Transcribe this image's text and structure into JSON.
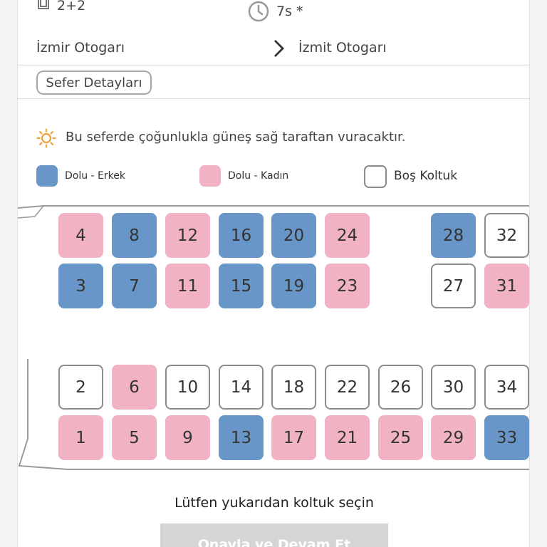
{
  "trip": {
    "layout": "2+2",
    "duration": "7s *",
    "from": "İzmir Otogarı",
    "to": "İzmit Otogarı",
    "details_button": "Sefer Detayları"
  },
  "sun_notice": "Bu seferde çoğunlukla güneş sağ taraftan vuracaktır.",
  "legend": {
    "male": "Dolu - Erkek",
    "female": "Dolu - Kadın",
    "empty": "Boş Koltuk"
  },
  "colors": {
    "male": "#6896c8",
    "female": "#f1b3c4",
    "empty": "#ffffff"
  },
  "seats": [
    {
      "number": "4",
      "status": "female"
    },
    {
      "number": "8",
      "status": "male"
    },
    {
      "number": "12",
      "status": "female"
    },
    {
      "number": "16",
      "status": "male"
    },
    {
      "number": "20",
      "status": "male"
    },
    {
      "number": "24",
      "status": "female"
    },
    {
      "number": "28",
      "status": "male"
    },
    {
      "number": "32",
      "status": "empty"
    },
    {
      "number": "3",
      "status": "male"
    },
    {
      "number": "7",
      "status": "male"
    },
    {
      "number": "11",
      "status": "female"
    },
    {
      "number": "15",
      "status": "male"
    },
    {
      "number": "19",
      "status": "male"
    },
    {
      "number": "23",
      "status": "female"
    },
    {
      "number": "27",
      "status": "empty"
    },
    {
      "number": "31",
      "status": "female"
    },
    {
      "number": "2",
      "status": "empty"
    },
    {
      "number": "6",
      "status": "female"
    },
    {
      "number": "10",
      "status": "empty"
    },
    {
      "number": "14",
      "status": "empty"
    },
    {
      "number": "18",
      "status": "empty"
    },
    {
      "number": "22",
      "status": "empty"
    },
    {
      "number": "26",
      "status": "empty"
    },
    {
      "number": "30",
      "status": "empty"
    },
    {
      "number": "34",
      "status": "empty"
    },
    {
      "number": "1",
      "status": "female"
    },
    {
      "number": "5",
      "status": "female"
    },
    {
      "number": "9",
      "status": "female"
    },
    {
      "number": "13",
      "status": "male"
    },
    {
      "number": "17",
      "status": "female"
    },
    {
      "number": "21",
      "status": "female"
    },
    {
      "number": "25",
      "status": "female"
    },
    {
      "number": "29",
      "status": "female"
    },
    {
      "number": "33",
      "status": "male"
    }
  ],
  "prompt": "Lütfen yukarıdan koltuk seçin",
  "continue_button": "Onayla ve Devam Et",
  "icons": {
    "layout": "seat-layout-icon",
    "duration": "clock-icon",
    "arrow": "chevron-right-icon",
    "sun": "sun-icon"
  }
}
